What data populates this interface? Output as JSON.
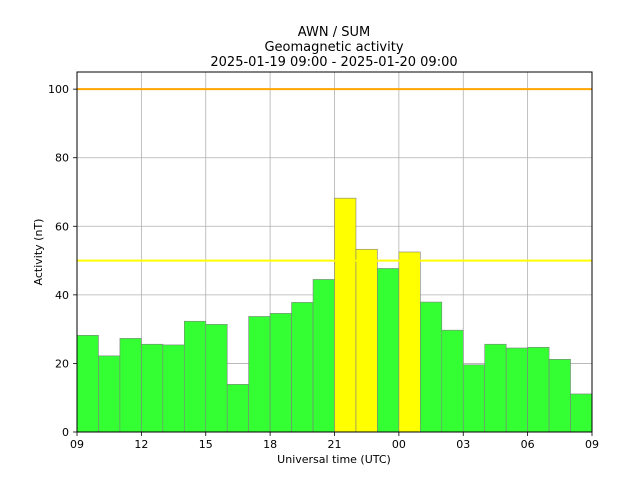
{
  "chart_data": {
    "type": "bar",
    "title": [
      "AWN / SUM",
      "Geomagnetic activity",
      "2025-01-19 09:00 - 2025-01-20 09:00"
    ],
    "xlabel": "Universal time (UTC)",
    "ylabel": "Activity (nT)",
    "ylim": [
      0,
      105
    ],
    "xlim": [
      0,
      24
    ],
    "grid": true,
    "x_ticks": [
      {
        "pos": 0,
        "label": "09"
      },
      {
        "pos": 3,
        "label": "12"
      },
      {
        "pos": 6,
        "label": "15"
      },
      {
        "pos": 9,
        "label": "18"
      },
      {
        "pos": 12,
        "label": "21"
      },
      {
        "pos": 15,
        "label": "00"
      },
      {
        "pos": 18,
        "label": "03"
      },
      {
        "pos": 21,
        "label": "06"
      },
      {
        "pos": 24,
        "label": "09"
      }
    ],
    "y_ticks": [
      0,
      20,
      40,
      60,
      80,
      100
    ],
    "values": [
      28.2,
      22.2,
      27.3,
      25.6,
      25.4,
      32.3,
      31.4,
      13.9,
      33.7,
      34.6,
      37.8,
      44.5,
      68.2,
      53.3,
      47.7,
      52.5,
      37.9,
      29.7,
      19.6,
      25.6,
      24.5,
      24.7,
      21.2,
      11.1
    ],
    "thresholds": [
      {
        "value": 100,
        "color": "#ffa500"
      },
      {
        "value": 50,
        "color": "#ffff00"
      }
    ],
    "colors": {
      "low": "#33ff33",
      "high": "#ffff00",
      "edge": "#808080"
    }
  }
}
